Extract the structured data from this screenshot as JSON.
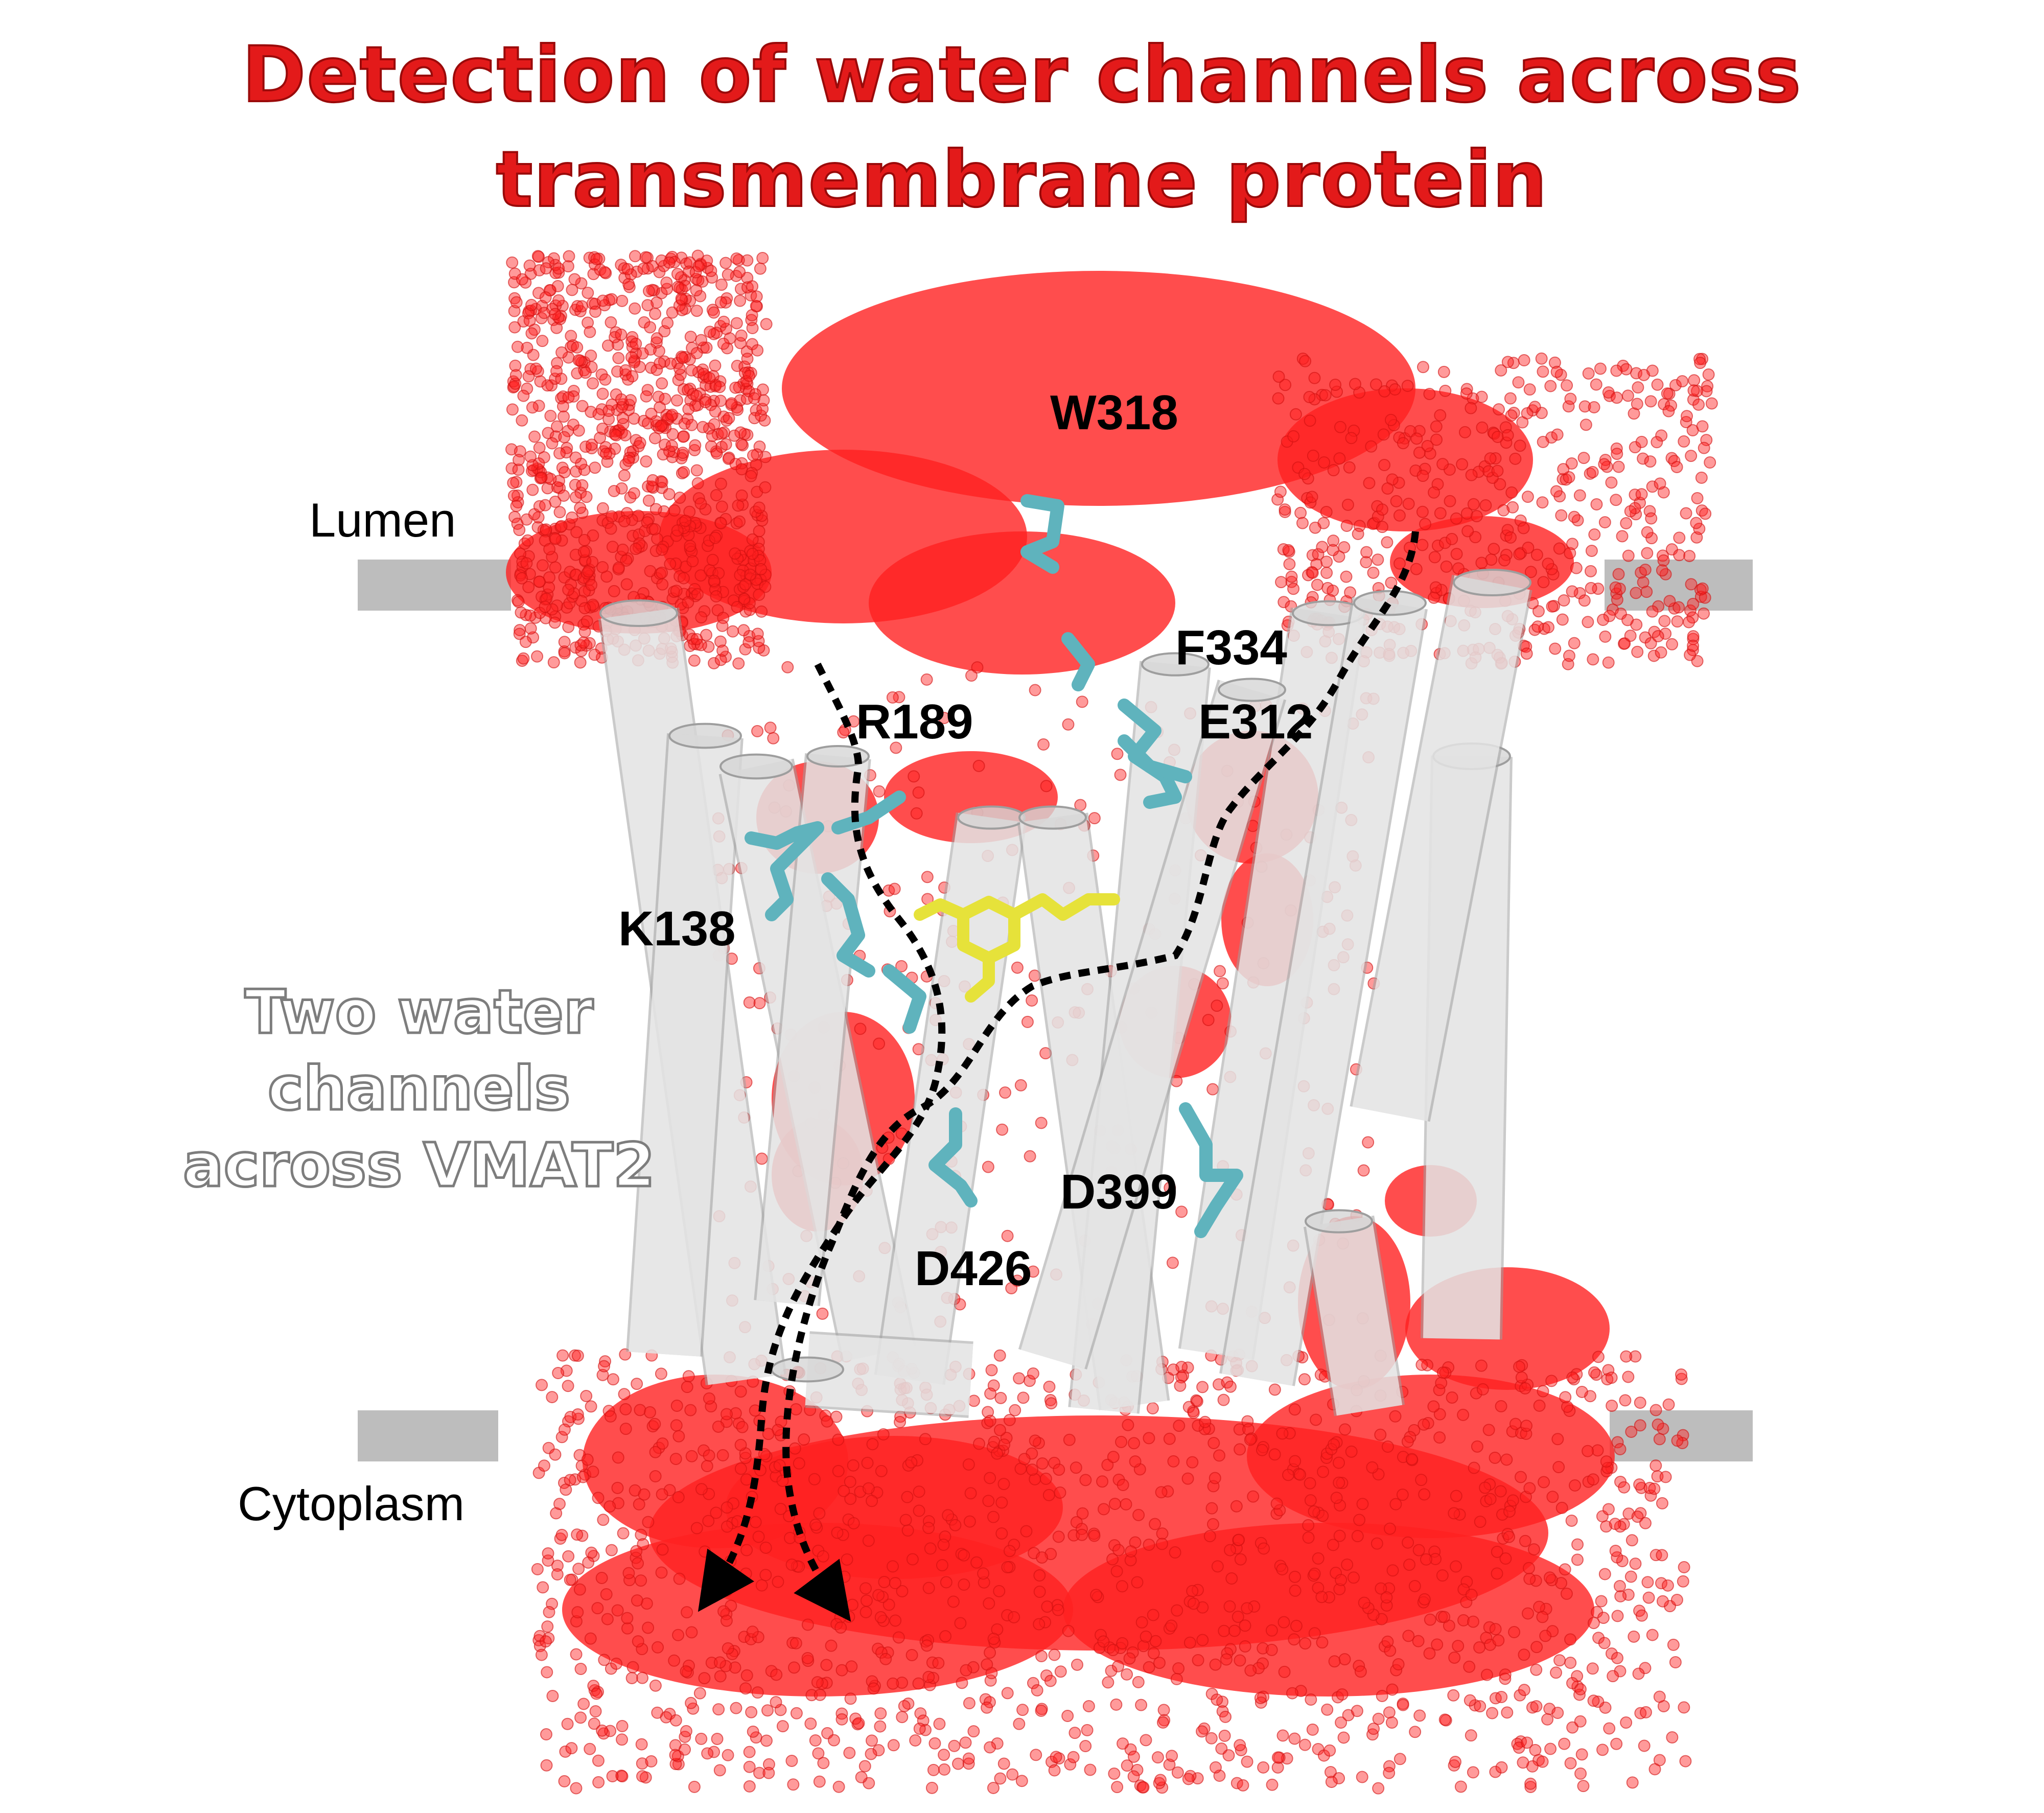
{
  "title": {
    "line1": "Detection of water channels across",
    "line2": "transmembrane protein"
  },
  "regions": {
    "lumen": "Lumen",
    "cytoplasm": "Cytoplasm"
  },
  "residues": {
    "w318": "W318",
    "f334": "F334",
    "r189": "R189",
    "e312": "E312",
    "k138": "K138",
    "d399": "D399",
    "d426": "D426"
  },
  "overlay": {
    "line1": "Two water",
    "line2": "channels",
    "line3": "across VMAT2"
  },
  "colors": {
    "title": "#e31a1a",
    "water": "#ff2020",
    "helix": "#dcdcdc",
    "residue": "#5fb3bd",
    "ligand": "#e6e23a",
    "membrane": "#bdbdbd",
    "path": "#000000"
  }
}
